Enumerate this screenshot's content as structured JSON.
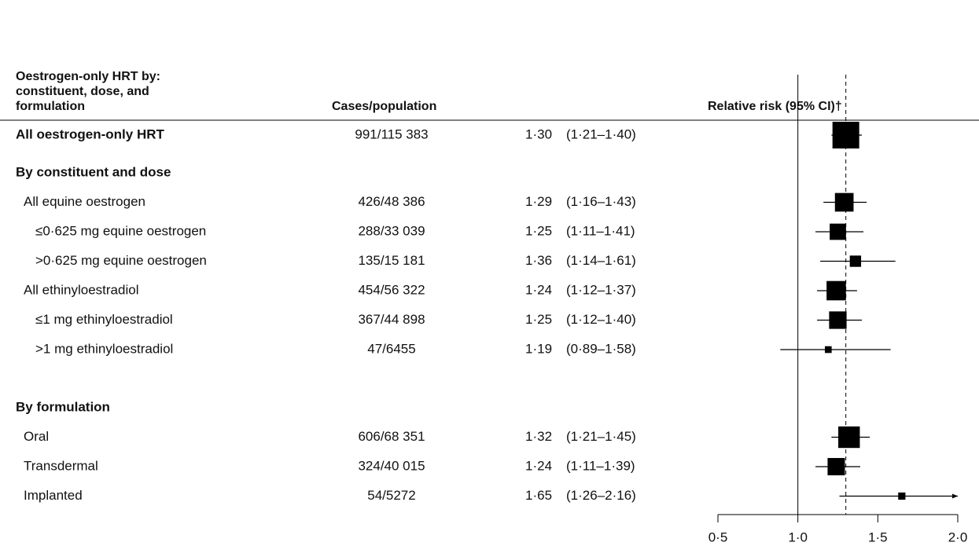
{
  "chart_data": {
    "type": "forest",
    "column_headers": {
      "group": [
        "Oestrogen-only HRT by:",
        "constituent, dose, and",
        "formulation"
      ],
      "cases": "Cases/population",
      "rr": "Relative risk (95% CI)†"
    },
    "overall": {
      "label": "All oestrogen-only HRT",
      "cases": "991/115 383",
      "estimate": 1.3,
      "ci": [
        1.21,
        1.4
      ],
      "estimate_label": "1·30",
      "ci_label": "(1·21–1·40)"
    },
    "sections": [
      {
        "title": "By constituent and dose",
        "rows": [
          {
            "label": "All equine oestrogen",
            "cases": "426/48 386",
            "estimate": 1.29,
            "ci": [
              1.16,
              1.43
            ],
            "estimate_label": "1·29",
            "ci_label": "(1·16–1·43)",
            "subrows": [
              {
                "label": "≤0·625 mg equine oestrogen",
                "cases": "288/33 039",
                "estimate": 1.25,
                "ci": [
                  1.11,
                  1.41
                ],
                "estimate_label": "1·25",
                "ci_label": "(1·11–1·41)"
              },
              {
                "label": ">0·625 mg equine oestrogen",
                "cases": "135/15 181",
                "estimate": 1.36,
                "ci": [
                  1.14,
                  1.61
                ],
                "estimate_label": "1·36",
                "ci_label": "(1·14–1·61)"
              }
            ]
          },
          {
            "label": "All ethinyloestradiol",
            "cases": "454/56 322",
            "estimate": 1.24,
            "ci": [
              1.12,
              1.37
            ],
            "estimate_label": "1·24",
            "ci_label": "(1·12–1·37)",
            "subrows": [
              {
                "label": "≤1 mg ethinyloestradiol",
                "cases": "367/44 898",
                "estimate": 1.25,
                "ci": [
                  1.12,
                  1.4
                ],
                "estimate_label": "1·25",
                "ci_label": "(1·12–1·40)"
              },
              {
                "label": ">1 mg ethinyloestradiol",
                "cases": "47/6455",
                "estimate": 1.19,
                "ci": [
                  0.89,
                  1.58
                ],
                "estimate_label": "1·19",
                "ci_label": "(0·89–1·58)"
              }
            ]
          }
        ]
      },
      {
        "title": "By formulation",
        "rows": [
          {
            "label": "Oral",
            "cases": "606/68 351",
            "estimate": 1.32,
            "ci": [
              1.21,
              1.45
            ],
            "estimate_label": "1·32",
            "ci_label": "(1·21–1·45)"
          },
          {
            "label": "Transdermal",
            "cases": "324/40 015",
            "estimate": 1.24,
            "ci": [
              1.11,
              1.39
            ],
            "estimate_label": "1·24",
            "ci_label": "(1·11–1·39)"
          },
          {
            "label": "Implanted",
            "cases": "54/5272",
            "estimate": 1.65,
            "ci": [
              1.26,
              2.16
            ],
            "estimate_label": "1·65",
            "ci_label": "(1·26–2·16)"
          }
        ]
      }
    ],
    "xlim": [
      0.5,
      2.0
    ],
    "xticks": [
      {
        "value": 0.5,
        "label": "0·5"
      },
      {
        "value": 1.0,
        "label": "1·0"
      },
      {
        "value": 1.5,
        "label": "1·5"
      },
      {
        "value": 2.0,
        "label": "2·0"
      }
    ],
    "reference_line": 1,
    "color": "#000000"
  }
}
